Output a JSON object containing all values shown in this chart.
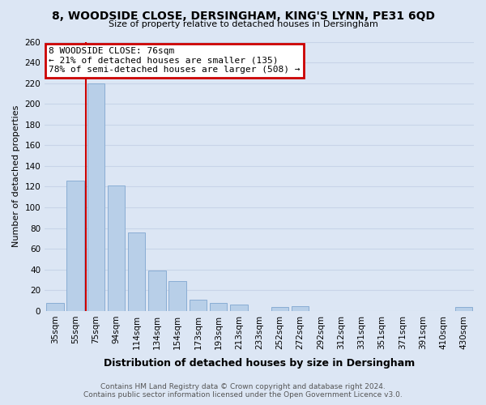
{
  "title": "8, WOODSIDE CLOSE, DERSINGHAM, KING'S LYNN, PE31 6QD",
  "subtitle": "Size of property relative to detached houses in Dersingham",
  "xlabel": "Distribution of detached houses by size in Dersingham",
  "ylabel": "Number of detached properties",
  "footer_line1": "Contains HM Land Registry data © Crown copyright and database right 2024.",
  "footer_line2": "Contains public sector information licensed under the Open Government Licence v3.0.",
  "bar_labels": [
    "35sqm",
    "55sqm",
    "75sqm",
    "94sqm",
    "114sqm",
    "134sqm",
    "154sqm",
    "173sqm",
    "193sqm",
    "213sqm",
    "233sqm",
    "252sqm",
    "272sqm",
    "292sqm",
    "312sqm",
    "331sqm",
    "351sqm",
    "371sqm",
    "391sqm",
    "410sqm",
    "430sqm"
  ],
  "bar_values": [
    8,
    126,
    220,
    121,
    76,
    39,
    29,
    11,
    8,
    6,
    0,
    4,
    5,
    0,
    0,
    0,
    0,
    0,
    0,
    0,
    4
  ],
  "bar_color": "#b8cfe8",
  "bar_edge_color": "#8aadd4",
  "annotation_title": "8 WOODSIDE CLOSE: 76sqm",
  "annotation_line1": "← 21% of detached houses are smaller (135)",
  "annotation_line2": "78% of semi-detached houses are larger (508) →",
  "annotation_box_facecolor": "#ffffff",
  "annotation_box_edgecolor": "#cc0000",
  "vline_color": "#cc0000",
  "vline_x_index": 2,
  "ylim": [
    0,
    260
  ],
  "ytick_step": 20,
  "grid_color": "#c8d4e8",
  "background_color": "#dce6f4",
  "title_fontsize": 10,
  "subtitle_fontsize": 8,
  "ylabel_fontsize": 8,
  "xlabel_fontsize": 9,
  "tick_fontsize": 7.5,
  "annotation_fontsize": 8,
  "footer_fontsize": 6.5
}
